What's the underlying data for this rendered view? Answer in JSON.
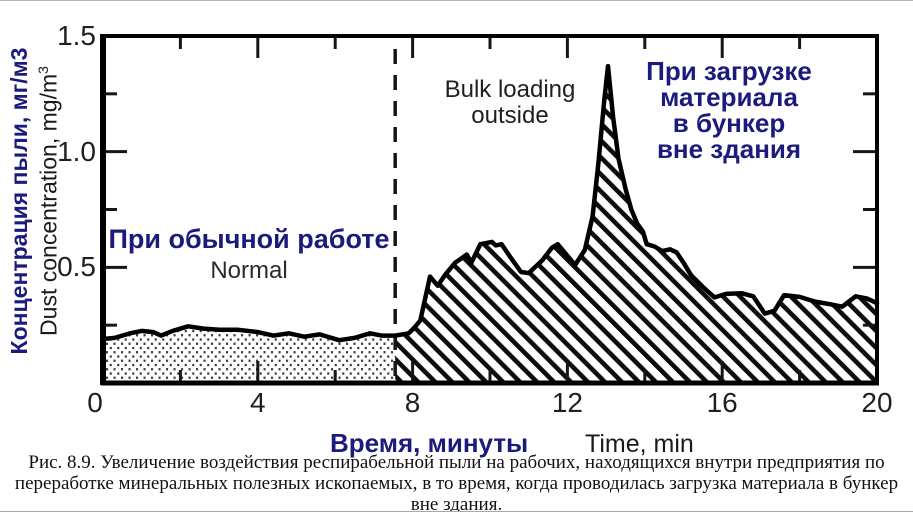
{
  "colors": {
    "navy": "#1b1b7d",
    "ink": "#000000",
    "tick_ink": "#161616"
  },
  "axes": {
    "y_label_ru": "Концентрация пыли, мг/м3",
    "y_label_en_base": "Dust concentration, mg/m",
    "y_label_en_sup": "3",
    "x_label_ru": "Время, минуты",
    "x_label_en": "Time, min"
  },
  "annotations": {
    "normal_ru": "При обычной работе",
    "normal_en": "Normal",
    "bulk_en": "Bulk loading\noutside",
    "bulk_ru": "При загрузке\nматериала\nв бункер\nвне здания"
  },
  "caption": "Рис. 8.9. Увеличение воздействия респирабельной пыли на рабочих, находящихся внутри предприятия по переработке минеральных полезных ископаемых, в то время, когда проводилась загрузка материала в бункер вне здания.",
  "chart_data": {
    "type": "area",
    "xlabel": "Время, минуты / Time, min",
    "ylabel": "Концентрация пыли, мг/м3 / Dust concentration, mg/m3",
    "xlim": [
      0,
      20
    ],
    "ylim": [
      0,
      1.5
    ],
    "grid": false,
    "x_ticks": {
      "values": [
        0,
        4,
        8,
        12,
        16,
        20
      ],
      "labels": [
        "0",
        "4",
        "8",
        "12",
        "16",
        "20"
      ],
      "minor": [
        2,
        6,
        10,
        14,
        18
      ]
    },
    "y_ticks": {
      "values": [
        0.5,
        1.0,
        1.5
      ],
      "labels": [
        "0.5",
        "1.0",
        "1.5"
      ],
      "minor": [
        0.25,
        0.75,
        1.25
      ]
    },
    "divider_x": 7.55,
    "regions": [
      {
        "name": "normal-operation",
        "label_ru": "При обычной работе",
        "label_en": "Normal",
        "x_range": [
          0,
          7.55
        ],
        "fill": "dots"
      },
      {
        "name": "bulk-loading-outside",
        "label_en": "Bulk loading outside",
        "label_ru": "При загрузке материала в бункер вне здания",
        "x_range": [
          7.55,
          20
        ],
        "fill": "hatch"
      }
    ],
    "series": [
      {
        "name": "dust-concentration",
        "points": [
          [
            0,
            0.19
          ],
          [
            0.3,
            0.195
          ],
          [
            0.7,
            0.215
          ],
          [
            1.0,
            0.225
          ],
          [
            1.3,
            0.22
          ],
          [
            1.5,
            0.205
          ],
          [
            1.8,
            0.225
          ],
          [
            2.2,
            0.245
          ],
          [
            2.6,
            0.235
          ],
          [
            3.0,
            0.23
          ],
          [
            3.5,
            0.23
          ],
          [
            4.0,
            0.22
          ],
          [
            4.4,
            0.205
          ],
          [
            4.8,
            0.215
          ],
          [
            5.2,
            0.2
          ],
          [
            5.6,
            0.21
          ],
          [
            6.1,
            0.185
          ],
          [
            6.5,
            0.195
          ],
          [
            6.9,
            0.215
          ],
          [
            7.2,
            0.205
          ],
          [
            7.55,
            0.205
          ],
          [
            7.9,
            0.215
          ],
          [
            8.05,
            0.24
          ],
          [
            8.2,
            0.27
          ],
          [
            8.45,
            0.46
          ],
          [
            8.65,
            0.42
          ],
          [
            8.85,
            0.47
          ],
          [
            9.1,
            0.52
          ],
          [
            9.4,
            0.555
          ],
          [
            9.52,
            0.52
          ],
          [
            9.75,
            0.6
          ],
          [
            10.05,
            0.61
          ],
          [
            10.15,
            0.595
          ],
          [
            10.3,
            0.6
          ],
          [
            10.5,
            0.55
          ],
          [
            10.8,
            0.48
          ],
          [
            11.0,
            0.475
          ],
          [
            11.35,
            0.53
          ],
          [
            11.6,
            0.585
          ],
          [
            11.75,
            0.6
          ],
          [
            11.95,
            0.56
          ],
          [
            12.2,
            0.51
          ],
          [
            12.45,
            0.575
          ],
          [
            12.65,
            0.72
          ],
          [
            12.8,
            0.95
          ],
          [
            12.95,
            1.22
          ],
          [
            13.05,
            1.37
          ],
          [
            13.18,
            1.15
          ],
          [
            13.32,
            0.97
          ],
          [
            13.5,
            0.84
          ],
          [
            13.65,
            0.75
          ],
          [
            13.8,
            0.69
          ],
          [
            13.95,
            0.655
          ],
          [
            14.05,
            0.6
          ],
          [
            14.25,
            0.59
          ],
          [
            14.45,
            0.57
          ],
          [
            14.65,
            0.578
          ],
          [
            14.82,
            0.565
          ],
          [
            15.0,
            0.52
          ],
          [
            15.2,
            0.465
          ],
          [
            15.5,
            0.415
          ],
          [
            15.8,
            0.37
          ],
          [
            16.1,
            0.385
          ],
          [
            16.5,
            0.388
          ],
          [
            16.8,
            0.375
          ],
          [
            17.1,
            0.3
          ],
          [
            17.35,
            0.312
          ],
          [
            17.6,
            0.38
          ],
          [
            18.0,
            0.372
          ],
          [
            18.4,
            0.352
          ],
          [
            18.8,
            0.34
          ],
          [
            19.1,
            0.33
          ],
          [
            19.45,
            0.375
          ],
          [
            19.75,
            0.365
          ],
          [
            20,
            0.345
          ]
        ]
      }
    ]
  }
}
